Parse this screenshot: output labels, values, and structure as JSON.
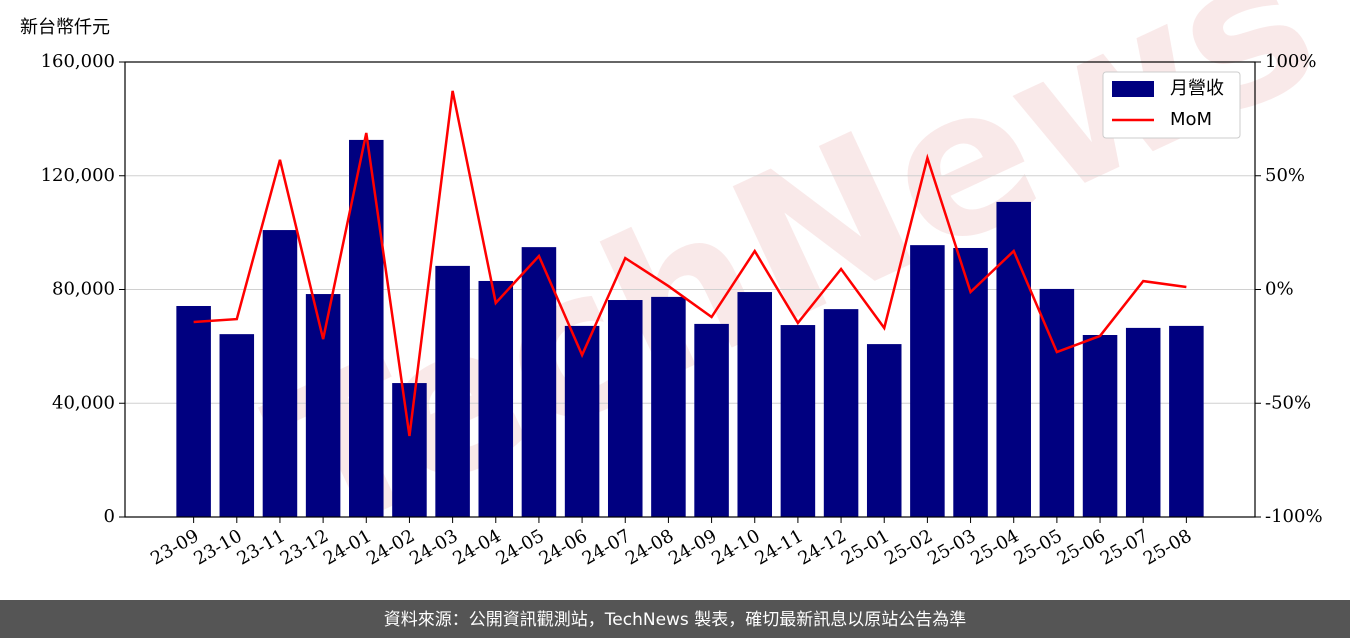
{
  "chart_data": {
    "type": "bar",
    "y_label": "新台幣仟元",
    "watermark": "TechNews",
    "source": "資料來源：公開資訊觀測站，TechNews 製表，確切最新訊息以原站公告為準",
    "categories": [
      "23-09",
      "23-10",
      "23-11",
      "23-12",
      "24-01",
      "24-02",
      "24-03",
      "24-04",
      "24-05",
      "24-06",
      "24-07",
      "24-08",
      "24-09",
      "24-10",
      "24-11",
      "24-12",
      "25-01",
      "25-02",
      "25-03",
      "25-04",
      "25-05",
      "25-06",
      "25-07",
      "25-08"
    ],
    "series": [
      {
        "name": "月營收",
        "type": "bar",
        "color": "#000080",
        "values": [
          74200,
          64300,
          100900,
          78400,
          132600,
          47100,
          88300,
          83000,
          94900,
          67200,
          76300,
          77400,
          67900,
          79100,
          67500,
          73100,
          60800,
          95600,
          94600,
          110800,
          80200,
          64000,
          66500,
          67200
        ]
      },
      {
        "name": "MoM",
        "type": "line",
        "color": "#ff0000",
        "axis": "y2",
        "values": [
          -14.3,
          -13,
          57,
          -21.8,
          68.8,
          -64.4,
          87.3,
          -5.9,
          14.7,
          -28.8,
          13.8,
          1.5,
          -12.1,
          16.9,
          -14.7,
          9,
          -16.9,
          57.8,
          -1.1,
          16.9,
          -27.5,
          -20.4,
          3.7,
          1.1
        ]
      }
    ],
    "ylim": [
      0,
      160000
    ],
    "yticks": [
      0,
      {
        "value": 40000,
        "label": "40,000"
      },
      {
        "value": 80000,
        "label": "80,000"
      },
      {
        "value": 120000,
        "label": "120,000"
      },
      {
        "value": 160000,
        "label": "160,000"
      }
    ],
    "y2lim": [
      -100,
      100
    ],
    "y2ticks": [
      {
        "value": -100,
        "label": "-100%"
      },
      {
        "value": -50,
        "label": "-50%"
      },
      {
        "value": 0,
        "label": "0%"
      },
      {
        "value": 50,
        "label": "50%"
      },
      {
        "value": 100,
        "label": "100%"
      }
    ],
    "grid": true,
    "legend": "upper right"
  }
}
